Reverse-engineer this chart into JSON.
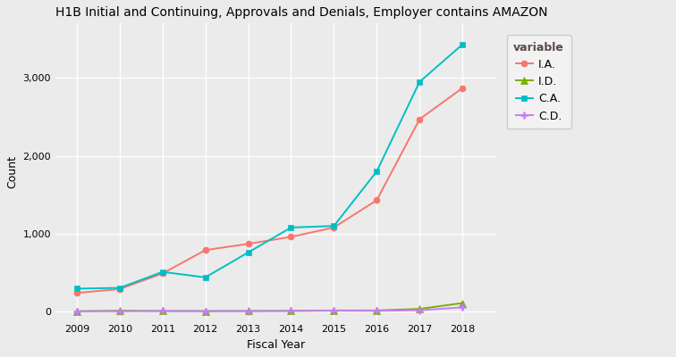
{
  "title": "H1B Initial and Continuing, Approvals and Denials, Employer contains AMAZON",
  "xlabel": "Fiscal Year",
  "ylabel": "Count",
  "legend_title": "variable",
  "years": [
    2009,
    2010,
    2011,
    2012,
    2013,
    2014,
    2015,
    2016,
    2017,
    2018
  ],
  "series": {
    "I.A.": {
      "values": [
        240,
        290,
        490,
        790,
        870,
        960,
        1080,
        1430,
        2470,
        2870
      ],
      "color": "#F8766D",
      "marker": "o",
      "markersize": 5
    },
    "I.D.": {
      "values": [
        5,
        12,
        8,
        7,
        8,
        10,
        15,
        15,
        35,
        110
      ],
      "color": "#7CAE00",
      "marker": "^",
      "markersize": 6
    },
    "C.A.": {
      "values": [
        295,
        305,
        510,
        440,
        760,
        1080,
        1100,
        1800,
        2950,
        3430
      ],
      "color": "#00BFC4",
      "marker": "s",
      "markersize": 5
    },
    "C.D.": {
      "values": [
        5,
        5,
        8,
        6,
        7,
        8,
        12,
        10,
        18,
        55
      ],
      "color": "#C77CFF",
      "marker": "P",
      "markersize": 6
    }
  },
  "ylim_min": -120,
  "ylim_max": 3700,
  "yticks": [
    0,
    1000,
    2000,
    3000
  ],
  "xlim_min": 2008.5,
  "xlim_max": 2018.8,
  "background_color": "#EBEBEB",
  "plot_bg_color": "#EBEBEB",
  "grid_color": "#FFFFFF",
  "title_fontsize": 10,
  "axis_label_fontsize": 9,
  "tick_fontsize": 8,
  "legend_fontsize": 9,
  "legend_title_fontsize": 9,
  "linewidth": 1.4,
  "figwidth": 7.56,
  "figheight": 4.0,
  "dpi": 100
}
